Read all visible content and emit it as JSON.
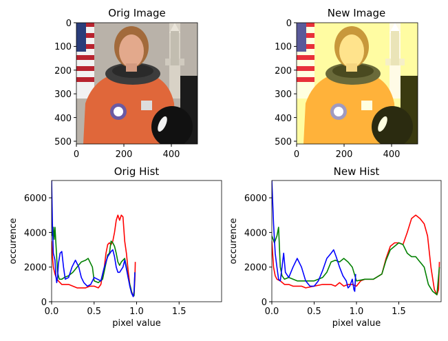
{
  "panels": {
    "orig_image": {
      "title": "Orig Image",
      "xticks": [
        "0",
        "200",
        "400"
      ],
      "yticks": [
        "0",
        "100",
        "200",
        "300",
        "400",
        "500"
      ]
    },
    "new_image": {
      "title": "New Image",
      "xticks": [
        "0",
        "200",
        "400"
      ],
      "yticks": [
        "0",
        "100",
        "200",
        "300",
        "400",
        "500"
      ]
    }
  },
  "image_content": {
    "subject": "astronaut in orange spacesuit with American flag, space shuttle and helmet",
    "orig_colors": {
      "suit": "#e0673a",
      "background": "#b9b2a9",
      "face": "#e3a98c",
      "dark": "#1b1b1b"
    },
    "new_colors": {
      "suit": "#ffb23a",
      "background": "#fffca2",
      "face": "#ffe38c",
      "dark": "#3a3a10"
    }
  },
  "chart_data": [
    {
      "type": "line",
      "title": "Orig Hist",
      "xlabel": "pixel value",
      "ylabel": "occurence",
      "xlim": [
        0,
        2.0
      ],
      "ylim": [
        0,
        7000
      ],
      "xticks": [
        "0.0",
        "0.5",
        "1.0",
        "1.5"
      ],
      "yticks": [
        "0",
        "2000",
        "4000",
        "6000"
      ],
      "series": [
        {
          "color": "#ff0000",
          "points": [
            [
              0.0,
              3500
            ],
            [
              0.01,
              2600
            ],
            [
              0.02,
              2000
            ],
            [
              0.04,
              1600
            ],
            [
              0.06,
              1300
            ],
            [
              0.08,
              1200
            ],
            [
              0.12,
              1000
            ],
            [
              0.2,
              1000
            ],
            [
              0.25,
              900
            ],
            [
              0.3,
              800
            ],
            [
              0.4,
              800
            ],
            [
              0.45,
              900
            ],
            [
              0.5,
              900
            ],
            [
              0.55,
              800
            ],
            [
              0.58,
              1000
            ],
            [
              0.6,
              1600
            ],
            [
              0.62,
              2000
            ],
            [
              0.64,
              2800
            ],
            [
              0.66,
              3300
            ],
            [
              0.68,
              3400
            ],
            [
              0.7,
              3300
            ],
            [
              0.72,
              3500
            ],
            [
              0.74,
              4000
            ],
            [
              0.76,
              4700
            ],
            [
              0.78,
              5000
            ],
            [
              0.8,
              4700
            ],
            [
              0.82,
              5000
            ],
            [
              0.84,
              4900
            ],
            [
              0.86,
              3500
            ],
            [
              0.88,
              2800
            ],
            [
              0.9,
              1800
            ],
            [
              0.92,
              1000
            ],
            [
              0.94,
              600
            ],
            [
              0.96,
              300
            ],
            [
              0.97,
              400
            ],
            [
              0.98,
              1300
            ],
            [
              0.985,
              2300
            ]
          ]
        },
        {
          "color": "#008000",
          "points": [
            [
              0.0,
              3800
            ],
            [
              0.02,
              4300
            ],
            [
              0.03,
              3600
            ],
            [
              0.04,
              4300
            ],
            [
              0.05,
              3400
            ],
            [
              0.07,
              1700
            ],
            [
              0.09,
              1300
            ],
            [
              0.12,
              1300
            ],
            [
              0.15,
              1400
            ],
            [
              0.2,
              1500
            ],
            [
              0.25,
              1700
            ],
            [
              0.3,
              2000
            ],
            [
              0.35,
              2300
            ],
            [
              0.4,
              2400
            ],
            [
              0.43,
              2500
            ],
            [
              0.45,
              2300
            ],
            [
              0.48,
              2000
            ],
            [
              0.5,
              1200
            ],
            [
              0.55,
              1100
            ],
            [
              0.6,
              1300
            ],
            [
              0.63,
              2000
            ],
            [
              0.66,
              2700
            ],
            [
              0.68,
              2800
            ],
            [
              0.7,
              3500
            ],
            [
              0.72,
              3400
            ],
            [
              0.74,
              3200
            ],
            [
              0.76,
              2800
            ],
            [
              0.78,
              2300
            ],
            [
              0.8,
              2100
            ],
            [
              0.82,
              2300
            ],
            [
              0.84,
              2400
            ],
            [
              0.86,
              2500
            ],
            [
              0.88,
              2000
            ],
            [
              0.9,
              1400
            ],
            [
              0.93,
              800
            ],
            [
              0.95,
              400
            ],
            [
              0.97,
              350
            ],
            [
              0.98,
              1700
            ]
          ]
        },
        {
          "color": "#0000ff",
          "points": [
            [
              0.0,
              7000
            ],
            [
              0.01,
              4500
            ],
            [
              0.02,
              2800
            ],
            [
              0.04,
              2400
            ],
            [
              0.05,
              1500
            ],
            [
              0.06,
              1100
            ],
            [
              0.07,
              1400
            ],
            [
              0.08,
              2200
            ],
            [
              0.1,
              2800
            ],
            [
              0.12,
              2900
            ],
            [
              0.14,
              2000
            ],
            [
              0.16,
              1300
            ],
            [
              0.2,
              1400
            ],
            [
              0.24,
              2000
            ],
            [
              0.28,
              2400
            ],
            [
              0.32,
              2000
            ],
            [
              0.35,
              1400
            ],
            [
              0.38,
              1100
            ],
            [
              0.42,
              900
            ],
            [
              0.46,
              1000
            ],
            [
              0.5,
              1400
            ],
            [
              0.54,
              1300
            ],
            [
              0.58,
              1200
            ],
            [
              0.62,
              2000
            ],
            [
              0.66,
              2600
            ],
            [
              0.7,
              2900
            ],
            [
              0.72,
              3000
            ],
            [
              0.74,
              2600
            ],
            [
              0.76,
              2000
            ],
            [
              0.78,
              1700
            ],
            [
              0.8,
              1700
            ],
            [
              0.84,
              2000
            ],
            [
              0.86,
              2400
            ],
            [
              0.88,
              1900
            ],
            [
              0.9,
              1400
            ],
            [
              0.92,
              900
            ],
            [
              0.94,
              500
            ],
            [
              0.96,
              300
            ],
            [
              0.97,
              600
            ],
            [
              0.98,
              1700
            ]
          ]
        }
      ]
    },
    {
      "type": "line",
      "title": "New Hist",
      "xlabel": "pixel value",
      "ylabel": "occurence",
      "xlim": [
        0,
        2.0
      ],
      "ylim": [
        0,
        7000
      ],
      "xticks": [
        "0.0",
        "0.5",
        "1.0",
        "1.5"
      ],
      "yticks": [
        "0",
        "2000",
        "4000",
        "6000"
      ],
      "series": [
        {
          "color": "#ff0000",
          "points": [
            [
              0.0,
              3500
            ],
            [
              0.02,
              2000
            ],
            [
              0.04,
              1500
            ],
            [
              0.06,
              1300
            ],
            [
              0.1,
              1200
            ],
            [
              0.15,
              1000
            ],
            [
              0.2,
              1000
            ],
            [
              0.25,
              900
            ],
            [
              0.3,
              900
            ],
            [
              0.35,
              900
            ],
            [
              0.4,
              800
            ],
            [
              0.5,
              900
            ],
            [
              0.6,
              1000
            ],
            [
              0.7,
              1000
            ],
            [
              0.75,
              900
            ],
            [
              0.8,
              1100
            ],
            [
              0.85,
              900
            ],
            [
              0.9,
              1000
            ],
            [
              0.95,
              1000
            ],
            [
              1.0,
              900
            ],
            [
              1.05,
              1200
            ],
            [
              1.1,
              1300
            ],
            [
              1.2,
              1300
            ],
            [
              1.3,
              1600
            ],
            [
              1.35,
              2500
            ],
            [
              1.4,
              3200
            ],
            [
              1.45,
              3400
            ],
            [
              1.5,
              3400
            ],
            [
              1.55,
              3300
            ],
            [
              1.6,
              4000
            ],
            [
              1.65,
              4800
            ],
            [
              1.7,
              5000
            ],
            [
              1.75,
              4800
            ],
            [
              1.8,
              4500
            ],
            [
              1.84,
              3800
            ],
            [
              1.88,
              2000
            ],
            [
              1.92,
              700
            ],
            [
              1.95,
              400
            ],
            [
              1.97,
              700
            ],
            [
              1.98,
              2300
            ]
          ]
        },
        {
          "color": "#008000",
          "points": [
            [
              0.0,
              3800
            ],
            [
              0.03,
              3400
            ],
            [
              0.06,
              3800
            ],
            [
              0.08,
              4300
            ],
            [
              0.1,
              2000
            ],
            [
              0.12,
              1500
            ],
            [
              0.15,
              1300
            ],
            [
              0.2,
              1400
            ],
            [
              0.25,
              1300
            ],
            [
              0.3,
              1200
            ],
            [
              0.4,
              1200
            ],
            [
              0.5,
              1200
            ],
            [
              0.6,
              1400
            ],
            [
              0.65,
              1700
            ],
            [
              0.7,
              2300
            ],
            [
              0.75,
              2400
            ],
            [
              0.8,
              2300
            ],
            [
              0.85,
              2500
            ],
            [
              0.9,
              2300
            ],
            [
              0.95,
              2000
            ],
            [
              1.0,
              1200
            ],
            [
              1.1,
              1300
            ],
            [
              1.2,
              1300
            ],
            [
              1.3,
              1600
            ],
            [
              1.35,
              2400
            ],
            [
              1.4,
              3000
            ],
            [
              1.45,
              3200
            ],
            [
              1.5,
              3400
            ],
            [
              1.55,
              3300
            ],
            [
              1.6,
              2800
            ],
            [
              1.65,
              2600
            ],
            [
              1.7,
              2600
            ],
            [
              1.75,
              2300
            ],
            [
              1.8,
              2000
            ],
            [
              1.85,
              1000
            ],
            [
              1.9,
              600
            ],
            [
              1.95,
              400
            ],
            [
              1.98,
              2000
            ]
          ]
        },
        {
          "color": "#0000ff",
          "points": [
            [
              0.0,
              7000
            ],
            [
              0.02,
              4500
            ],
            [
              0.04,
              2800
            ],
            [
              0.06,
              2000
            ],
            [
              0.08,
              1300
            ],
            [
              0.1,
              1200
            ],
            [
              0.12,
              2000
            ],
            [
              0.14,
              2800
            ],
            [
              0.16,
              1700
            ],
            [
              0.2,
              1400
            ],
            [
              0.25,
              2000
            ],
            [
              0.3,
              2500
            ],
            [
              0.35,
              2000
            ],
            [
              0.4,
              1200
            ],
            [
              0.45,
              900
            ],
            [
              0.5,
              900
            ],
            [
              0.55,
              1200
            ],
            [
              0.6,
              1800
            ],
            [
              0.65,
              2500
            ],
            [
              0.7,
              2800
            ],
            [
              0.73,
              3000
            ],
            [
              0.76,
              2600
            ],
            [
              0.8,
              2000
            ],
            [
              0.84,
              1500
            ],
            [
              0.88,
              1200
            ],
            [
              0.9,
              800
            ],
            [
              0.92,
              900
            ],
            [
              0.95,
              1300
            ],
            [
              0.97,
              700
            ],
            [
              0.98,
              600
            ],
            [
              0.99,
              1600
            ]
          ]
        }
      ]
    }
  ]
}
